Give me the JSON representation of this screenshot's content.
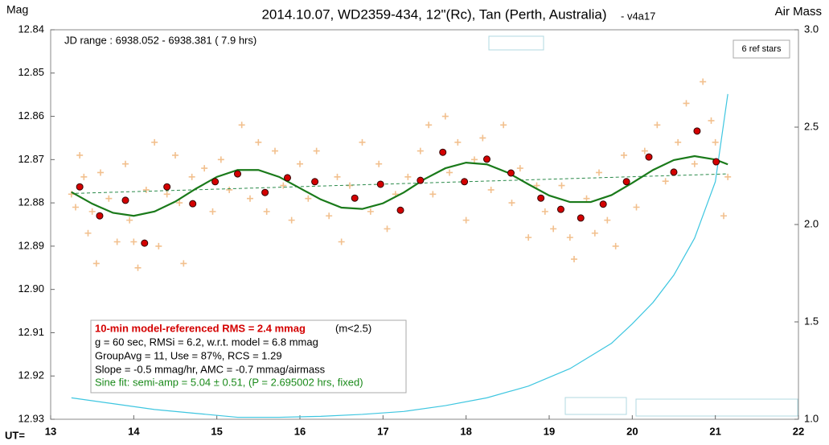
{
  "chart_data": {
    "type": "scatter",
    "title": "2014.10.07, WD2359-434, 12\"(Rc), Tan (Perth, Australia)",
    "subtitle": "- v4a17",
    "ylabel": "Mag",
    "y2label": "Air Mass",
    "xlabel": "UT=",
    "jd_range": "JD range : 6938.052 - 6938.381 ( 7.9 hrs)",
    "ref_stars": "6 ref stars",
    "stats_title": "10-min model-referenced RMS = 2.4 mmag",
    "stats_note": "(m<2.5)",
    "stats": [
      "g = 60 sec, RMSi = 6.2, w.r.t. model = 6.8 mmag",
      "GroupAvg = 11, Use = 87%, RCS = 1.29",
      "Slope = -0.5 mmag/hr, AMC = -0.7 mmag/airmass"
    ],
    "sine_fit": "Sine fit: semi-amp = 5.04 ± 0.51, (P = 2.695002 hrs, fixed)",
    "xlim": [
      13,
      22
    ],
    "xticks": [
      13,
      14,
      15,
      16,
      17,
      18,
      19,
      20,
      21,
      22
    ],
    "ylim": [
      12.84,
      12.93
    ],
    "yreverse": true,
    "yticks": [
      12.84,
      12.85,
      12.86,
      12.87,
      12.88,
      12.89,
      {
        "value": 12.9,
        "label": "12.90"
      },
      12.91,
      12.92,
      12.93
    ],
    "y2lim": [
      1,
      3
    ],
    "y2ticks": [
      {
        "value": 1,
        "label": "1.0"
      },
      1.5,
      {
        "value": 2,
        "label": "2.0"
      },
      2.5,
      {
        "value": 3,
        "label": "3.0"
      }
    ],
    "series": [
      {
        "mark": "cross",
        "color": "#f2c08e",
        "x": [
          13.25,
          13.3,
          13.35,
          13.4,
          13.45,
          13.5,
          13.55,
          13.6,
          13.7,
          13.8,
          13.9,
          13.95,
          14.0,
          14.05,
          14.15,
          14.25,
          14.3,
          14.4,
          14.5,
          14.55,
          14.6,
          14.7,
          14.85,
          14.95,
          15.05,
          15.15,
          15.3,
          15.4,
          15.5,
          15.6,
          15.7,
          15.8,
          15.9,
          16.0,
          16.1,
          16.2,
          16.35,
          16.45,
          16.5,
          16.6,
          16.75,
          16.85,
          16.95,
          17.05,
          17.15,
          17.3,
          17.45,
          17.55,
          17.6,
          17.75,
          17.8,
          17.9,
          18.0,
          18.1,
          18.2,
          18.3,
          18.45,
          18.55,
          18.65,
          18.75,
          18.85,
          18.95,
          19.05,
          19.15,
          19.25,
          19.3,
          19.45,
          19.55,
          19.6,
          19.7,
          19.8,
          19.9,
          20.05,
          20.15,
          20.3,
          20.4,
          20.55,
          20.65,
          20.75,
          20.85,
          20.95,
          21.0,
          21.1,
          21.15
        ],
        "values": [
          12.878,
          12.881,
          12.869,
          12.874,
          12.887,
          12.882,
          12.894,
          12.873,
          12.879,
          12.889,
          12.871,
          12.884,
          12.889,
          12.895,
          12.877,
          12.866,
          12.89,
          12.878,
          12.869,
          12.88,
          12.894,
          12.874,
          12.872,
          12.882,
          12.87,
          12.877,
          12.862,
          12.879,
          12.866,
          12.882,
          12.868,
          12.876,
          12.884,
          12.871,
          12.879,
          12.868,
          12.883,
          12.874,
          12.889,
          12.876,
          12.866,
          12.882,
          12.871,
          12.886,
          12.878,
          12.874,
          12.868,
          12.862,
          12.878,
          12.86,
          12.873,
          12.866,
          12.884,
          12.87,
          12.865,
          12.877,
          12.862,
          12.88,
          12.872,
          12.888,
          12.876,
          12.882,
          12.886,
          12.876,
          12.888,
          12.893,
          12.879,
          12.887,
          12.873,
          12.884,
          12.89,
          12.869,
          12.881,
          12.868,
          12.862,
          12.875,
          12.866,
          12.857,
          12.871,
          12.852,
          12.861,
          12.866,
          12.883,
          12.874
        ]
      },
      {
        "mark": "dot",
        "color": "#d40000",
        "x": [
          13.35,
          13.59,
          13.9,
          14.13,
          14.4,
          14.71,
          14.98,
          15.25,
          15.58,
          15.85,
          16.18,
          16.66,
          16.97,
          17.21,
          17.45,
          17.72,
          17.98,
          18.25,
          18.54,
          18.9,
          19.14,
          19.38,
          19.65,
          19.93,
          20.2,
          20.5,
          20.78,
          21.01
        ],
        "values": [
          12.8763,
          12.883,
          12.8794,
          12.8893,
          12.8763,
          12.8802,
          12.8751,
          12.8733,
          12.8776,
          12.8742,
          12.8751,
          12.8789,
          12.8757,
          12.8817,
          12.8748,
          12.8683,
          12.8751,
          12.8699,
          12.8731,
          12.8789,
          12.8815,
          12.8835,
          12.8803,
          12.8751,
          12.8694,
          12.8729,
          12.8634,
          12.8705
        ]
      },
      {
        "mark": "line",
        "color": "#1a7a1a",
        "dashed": false,
        "x": [
          13.25,
          13.5,
          13.75,
          14.0,
          14.25,
          14.5,
          14.75,
          15.0,
          15.25,
          15.5,
          15.75,
          16.0,
          16.25,
          16.5,
          16.75,
          17.0,
          17.25,
          17.5,
          17.75,
          18.0,
          18.25,
          18.5,
          18.75,
          19.0,
          19.25,
          19.5,
          19.75,
          20.0,
          20.25,
          20.5,
          20.75,
          21.0,
          21.15
        ],
        "values": [
          12.8775,
          12.8802,
          12.8823,
          12.883,
          12.882,
          12.8797,
          12.8767,
          12.874,
          12.8724,
          12.8724,
          12.874,
          12.8766,
          12.8792,
          12.8811,
          12.8814,
          12.8801,
          12.8776,
          12.8745,
          12.872,
          12.8707,
          12.8711,
          12.873,
          12.8757,
          12.8783,
          12.8798,
          12.8798,
          12.8782,
          12.8754,
          12.8724,
          12.8701,
          12.8692,
          12.87,
          12.8711
        ]
      },
      {
        "mark": "line",
        "color": "#2a8a4a",
        "dashed": true,
        "x": [
          13.3,
          21.15
        ],
        "values": [
          12.8778,
          12.8733
        ]
      },
      {
        "mark": "line",
        "color": "#3ec6e0",
        "dashed": false,
        "axis": "y2",
        "x": [
          13.25,
          13.75,
          14.25,
          14.75,
          15.25,
          15.75,
          16.25,
          16.75,
          17.25,
          17.75,
          18.25,
          18.75,
          19.25,
          19.75,
          20.0,
          20.25,
          20.5,
          20.75,
          21.0,
          21.15
        ],
        "values": [
          1.11,
          1.08,
          1.05,
          1.03,
          1.01,
          1.01,
          1.015,
          1.025,
          1.04,
          1.07,
          1.11,
          1.17,
          1.26,
          1.39,
          1.49,
          1.6,
          1.74,
          1.93,
          2.22,
          2.67
        ]
      }
    ]
  }
}
